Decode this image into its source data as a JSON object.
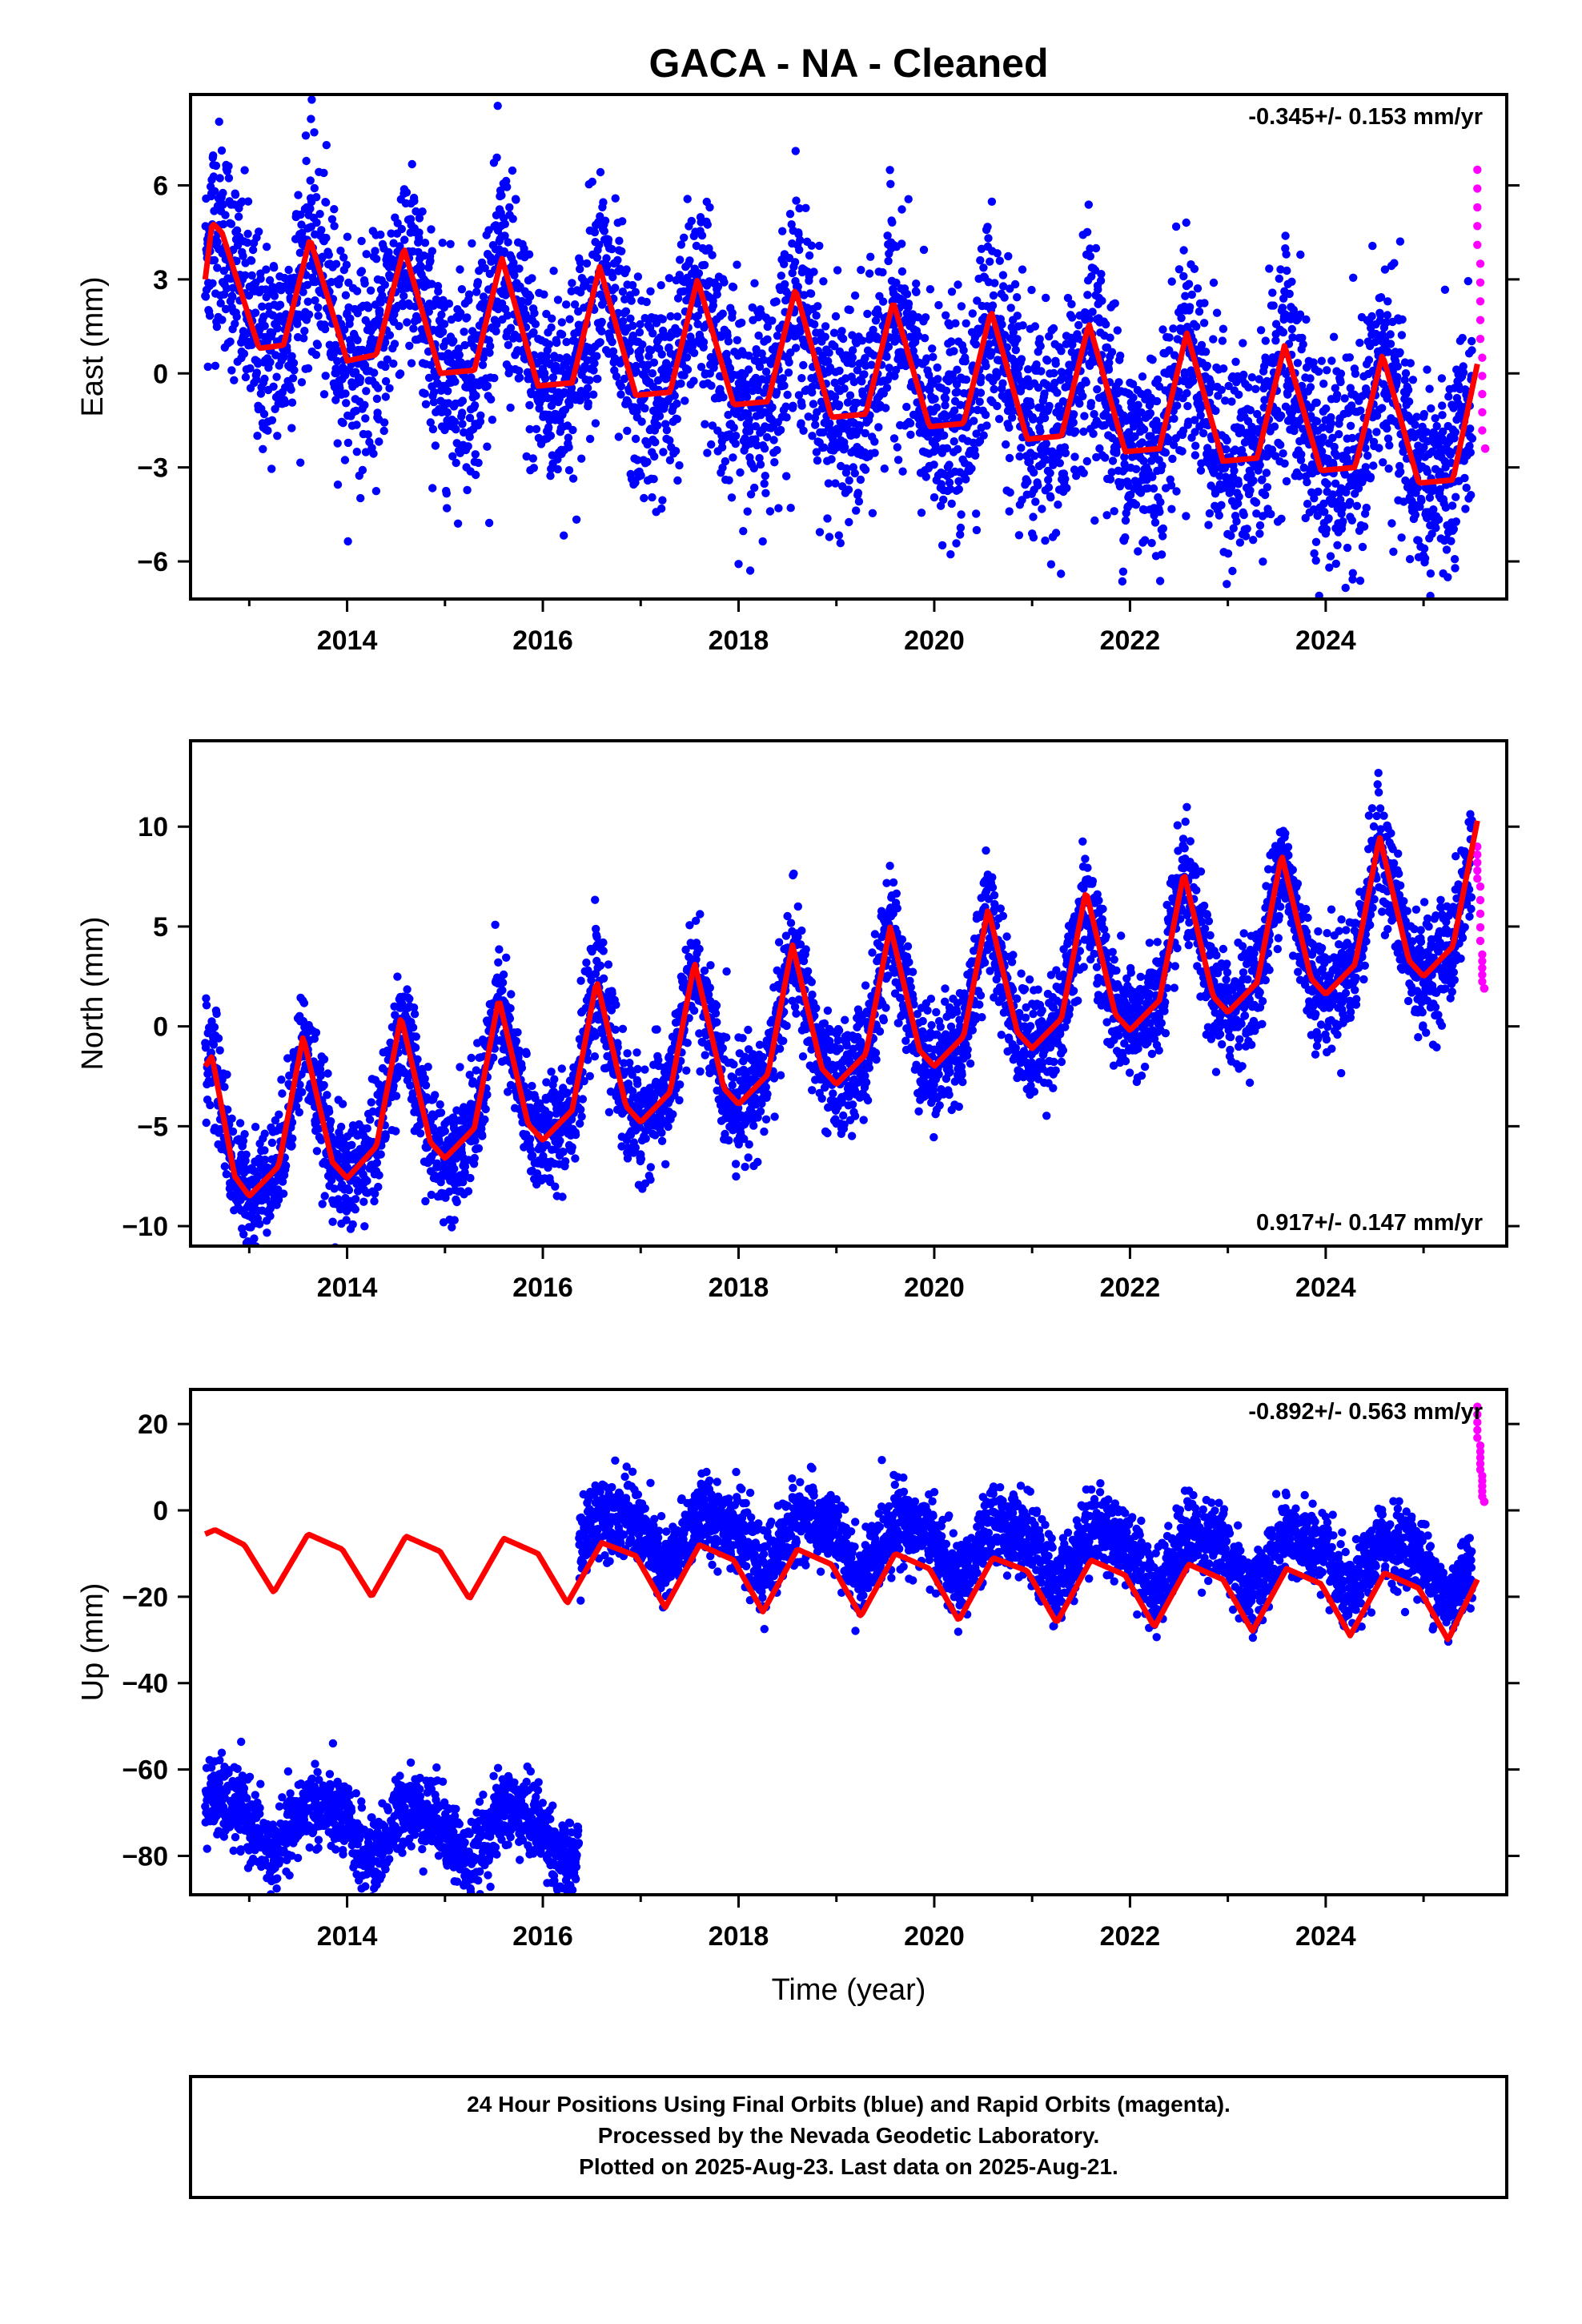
{
  "title": "GACA  - NA - Cleaned",
  "x_label": "Time (year)",
  "footer_lines": [
    "24 Hour Positions Using Final Orbits (blue) and Rapid Orbits (magenta).",
    "Processed by the Nevada Geodetic Laboratory.",
    "Plotted on 2025-Aug-23. Last data on 2025-Aug-21."
  ],
  "colors": {
    "final": "#0000ff",
    "rapid": "#ff00ff",
    "model": "#ff0000",
    "axis": "#000000"
  },
  "chart_data": [
    {
      "type": "scatter",
      "component": "East",
      "ylabel": "East (mm)",
      "rate": "-0.345+/- 0.153 mm/yr",
      "rate_position": "top-right",
      "xlim": [
        2012.4,
        2025.85
      ],
      "ylim": [
        -7.2,
        8.9
      ],
      "yticks": [
        -6,
        -3,
        0,
        3,
        6
      ],
      "xticks": [
        2014,
        2016,
        2018,
        2020,
        2022,
        2024
      ],
      "series": [
        {
          "name": "Final Orbits",
          "style": "points",
          "segments": [
            {
              "start": 2012.55,
              "end": 2025.5
            }
          ],
          "scatter": 1.7
        },
        {
          "name": "Rapid Orbits",
          "style": "points",
          "x": [
            2025.55,
            2025.58,
            2025.6,
            2025.63
          ],
          "y": [
            6.5,
            3.5,
            0.5,
            -2.4
          ]
        },
        {
          "name": "Model",
          "style": "line",
          "x": [
            2012.55,
            2012.62,
            2012.72,
            2013.1,
            2013.35,
            2013.62,
            2014.0,
            2014.3,
            2014.58,
            2014.95,
            2015.3,
            2015.58,
            2015.95,
            2016.3,
            2016.58,
            2016.95,
            2017.3,
            2017.58,
            2017.95,
            2018.3,
            2018.58,
            2018.95,
            2019.3,
            2019.58,
            2019.95,
            2020.3,
            2020.58,
            2020.95,
            2021.3,
            2021.58,
            2021.95,
            2022.3,
            2022.58,
            2022.95,
            2023.3,
            2023.58,
            2023.95,
            2024.3,
            2024.58,
            2024.95,
            2025.3,
            2025.55
          ],
          "y": [
            3.0,
            4.8,
            4.5,
            0.8,
            0.9,
            4.3,
            0.4,
            0.6,
            4.0,
            0.0,
            0.1,
            3.7,
            -0.4,
            -0.3,
            3.4,
            -0.7,
            -0.6,
            3.0,
            -1.0,
            -0.9,
            2.7,
            -1.4,
            -1.3,
            2.3,
            -1.7,
            -1.6,
            2.0,
            -2.1,
            -2.0,
            1.6,
            -2.5,
            -2.4,
            1.3,
            -2.8,
            -2.7,
            0.9,
            -3.1,
            -3.0,
            0.6,
            -3.5,
            -3.4,
            0.3
          ]
        }
      ]
    },
    {
      "type": "scatter",
      "component": "North",
      "ylabel": "North (mm)",
      "rate": "0.917+/- 0.147 mm/yr",
      "rate_position": "bottom-right",
      "xlim": [
        2012.4,
        2025.85
      ],
      "ylim": [
        -11.0,
        14.3
      ],
      "yticks": [
        -10,
        -5,
        0,
        5,
        10
      ],
      "xticks": [
        2014,
        2016,
        2018,
        2020,
        2022,
        2024
      ],
      "series": [
        {
          "name": "Final Orbits",
          "style": "points",
          "segments": [
            {
              "start": 2012.55,
              "end": 2025.5
            }
          ],
          "scatter": 1.4
        },
        {
          "name": "Rapid Orbits",
          "style": "points",
          "x": [
            2025.55,
            2025.58,
            2025.6,
            2025.62
          ],
          "y": [
            9.0,
            7.0,
            3.6,
            1.9
          ]
        },
        {
          "name": "Model",
          "style": "line",
          "x": [
            2012.55,
            2012.62,
            2012.85,
            2013.0,
            2013.3,
            2013.55,
            2013.85,
            2014.0,
            2014.3,
            2014.55,
            2014.85,
            2015.0,
            2015.3,
            2015.55,
            2015.85,
            2016.0,
            2016.3,
            2016.55,
            2016.85,
            2017.0,
            2017.3,
            2017.55,
            2017.85,
            2018.0,
            2018.3,
            2018.55,
            2018.85,
            2019.0,
            2019.3,
            2019.55,
            2019.85,
            2020.0,
            2020.3,
            2020.55,
            2020.85,
            2021.0,
            2021.3,
            2021.55,
            2021.85,
            2022.0,
            2022.3,
            2022.55,
            2022.85,
            2023.0,
            2023.3,
            2023.55,
            2023.85,
            2024.0,
            2024.3,
            2024.55,
            2024.85,
            2025.0,
            2025.3,
            2025.55
          ],
          "y": [
            -2.0,
            -1.5,
            -7.5,
            -8.5,
            -7.0,
            -0.5,
            -6.8,
            -7.6,
            -6.0,
            0.5,
            -5.8,
            -6.6,
            -5.1,
            1.4,
            -4.9,
            -5.7,
            -4.2,
            2.3,
            -4.0,
            -4.8,
            -3.3,
            3.2,
            -3.1,
            -3.9,
            -2.4,
            4.1,
            -2.1,
            -2.9,
            -1.4,
            5.0,
            -1.2,
            -2.0,
            -0.5,
            5.9,
            -0.3,
            -1.1,
            0.4,
            6.8,
            0.6,
            -0.2,
            1.3,
            7.7,
            1.5,
            0.7,
            2.2,
            8.6,
            2.4,
            1.6,
            3.1,
            9.5,
            3.3,
            2.5,
            4.0,
            10.3
          ]
        }
      ]
    },
    {
      "type": "scatter",
      "component": "Up",
      "ylabel": "Up (mm)",
      "rate": "-0.892+/- 0.563 mm/yr",
      "rate_position": "top-right",
      "xlim": [
        2012.4,
        2025.85
      ],
      "ylim": [
        -89.0,
        28.0
      ],
      "yticks": [
        -80,
        -60,
        -40,
        -20,
        0,
        20
      ],
      "xticks": [
        2014,
        2016,
        2018,
        2020,
        2022,
        2024
      ],
      "series": [
        {
          "name": "Final Orbits",
          "style": "points",
          "segments": [
            {
              "start": 2012.55,
              "end": 2016.37,
              "offset": -67.0
            },
            {
              "start": 2016.37,
              "end": 2025.5,
              "offset": 3.0
            }
          ],
          "scatter": 4.5
        },
        {
          "name": "Rapid Orbits",
          "style": "points",
          "x": [
            2025.55,
            2025.58,
            2025.6,
            2025.62
          ],
          "y": [
            24.0,
            15.0,
            8.0,
            2.0
          ]
        },
        {
          "name": "Model",
          "style": "line",
          "x": [
            2012.55,
            2012.65,
            2012.95,
            2013.25,
            2013.6,
            2013.95,
            2014.25,
            2014.6,
            2014.95,
            2015.25,
            2015.6,
            2015.95,
            2016.25,
            2016.6,
            2016.95,
            2017.25,
            2017.6,
            2017.95,
            2018.25,
            2018.6,
            2018.95,
            2019.25,
            2019.6,
            2019.95,
            2020.25,
            2020.6,
            2020.95,
            2021.25,
            2021.6,
            2021.95,
            2022.25,
            2022.6,
            2022.95,
            2023.25,
            2023.6,
            2023.95,
            2024.25,
            2024.6,
            2024.95,
            2025.25,
            2025.55
          ],
          "y": [
            -5.5,
            -4.5,
            -8.0,
            -19.0,
            -5.5,
            -9.0,
            -20.0,
            -6.0,
            -9.5,
            -20.5,
            -6.5,
            -10.0,
            -21.5,
            -7.5,
            -10.5,
            -22.5,
            -8.0,
            -11.5,
            -23.5,
            -9.0,
            -12.5,
            -24.5,
            -10.0,
            -13.5,
            -25.5,
            -11.0,
            -14.0,
            -26.0,
            -11.5,
            -15.0,
            -27.0,
            -12.5,
            -16.0,
            -28.0,
            -13.5,
            -17.0,
            -29.0,
            -14.5,
            -18.0,
            -30.0,
            -16.0
          ]
        }
      ]
    }
  ]
}
